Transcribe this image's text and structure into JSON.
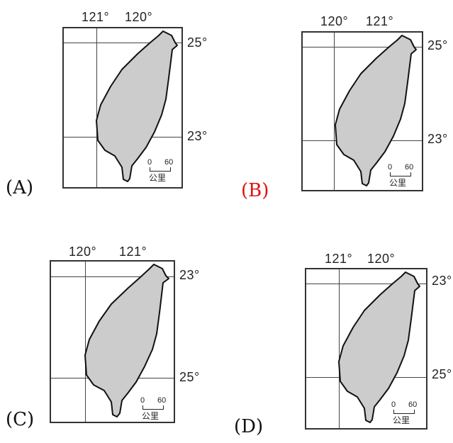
{
  "options": [
    {
      "id": "A",
      "label": "(A)",
      "color": "#111111",
      "lon_labels": [
        "121°",
        "120°"
      ],
      "lat_labels": [
        "25°",
        "23°"
      ]
    },
    {
      "id": "B",
      "label": "(B)",
      "color": "#e01010",
      "lon_labels": [
        "120°",
        "121°"
      ],
      "lat_labels": [
        "25°",
        "23°"
      ]
    },
    {
      "id": "C",
      "label": "(C)",
      "color": "#111111",
      "lon_labels": [
        "120°",
        "121°"
      ],
      "lat_labels": [
        "23°",
        "25°"
      ]
    },
    {
      "id": "D",
      "label": "(D)",
      "color": "#111111",
      "lon_labels": [
        "121°",
        "120°"
      ],
      "lat_labels": [
        "23°",
        "25°"
      ]
    }
  ],
  "scale_bar": {
    "zero": "0",
    "sixty": "60",
    "unit": "公里"
  },
  "colors": {
    "land_fill": "#cccccc",
    "outline": "#111111",
    "frame": "#333333",
    "highlight": "#e01010"
  }
}
